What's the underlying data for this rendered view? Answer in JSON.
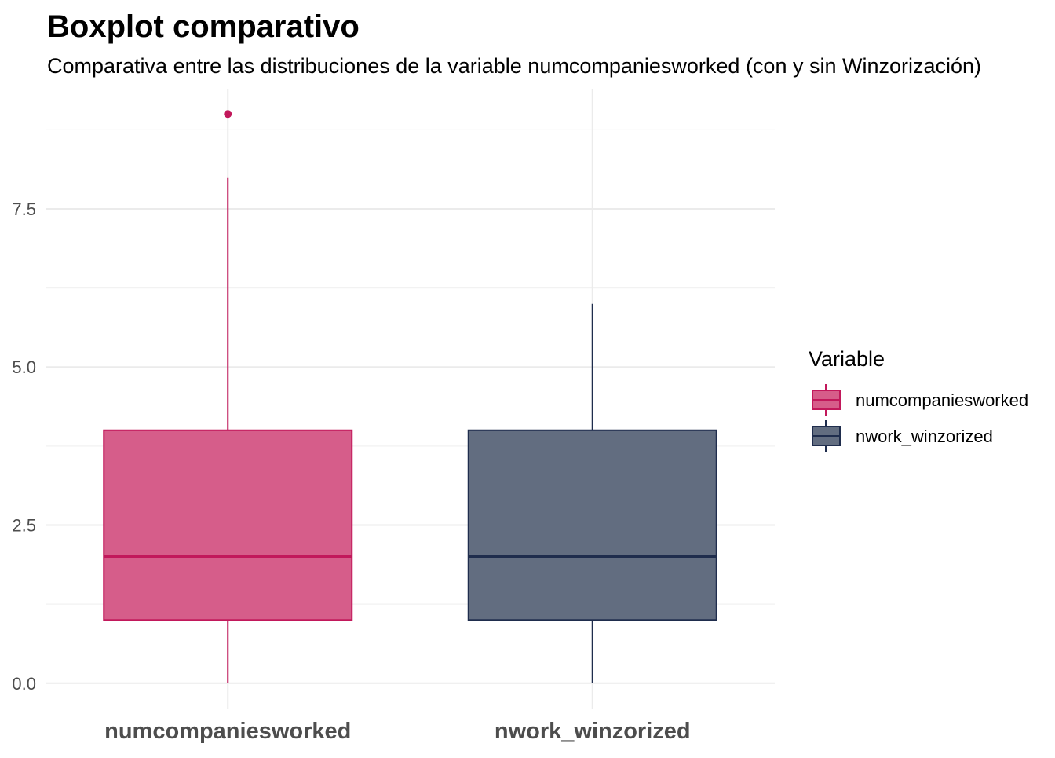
{
  "chart_data": {
    "type": "boxplot",
    "title": "Boxplot comparativo",
    "subtitle": "Comparativa entre las distribuciones de la variable numcompaniesworked (con y sin Winzorización)",
    "xlabel": "",
    "ylabel": "",
    "ylim": [
      -0.4,
      9.4
    ],
    "y_ticks": [
      0.0,
      2.5,
      5.0,
      7.5
    ],
    "y_tick_labels": [
      "0.0",
      "2.5",
      "5.0",
      "7.5"
    ],
    "y_minor_ticks": [
      1.25,
      3.75,
      6.25,
      8.75
    ],
    "grid": true,
    "categories": [
      "numcompaniesworked",
      "nwork_winzorized"
    ],
    "series": [
      {
        "name": "numcompaniesworked",
        "color": "#C2185B",
        "fill": "#D65D8A",
        "whisker_low": 0,
        "q1": 1,
        "median": 2,
        "q3": 4,
        "whisker_high": 8,
        "outliers": [
          9
        ]
      },
      {
        "name": "nwork_winzorized",
        "color": "#1F2D4D",
        "fill": "#626D80",
        "whisker_low": 0,
        "q1": 1,
        "median": 2,
        "q3": 4,
        "whisker_high": 6,
        "outliers": []
      }
    ],
    "legend": {
      "title": "Variable",
      "placement": "right",
      "entries": [
        "numcompaniesworked",
        "nwork_winzorized"
      ]
    }
  }
}
